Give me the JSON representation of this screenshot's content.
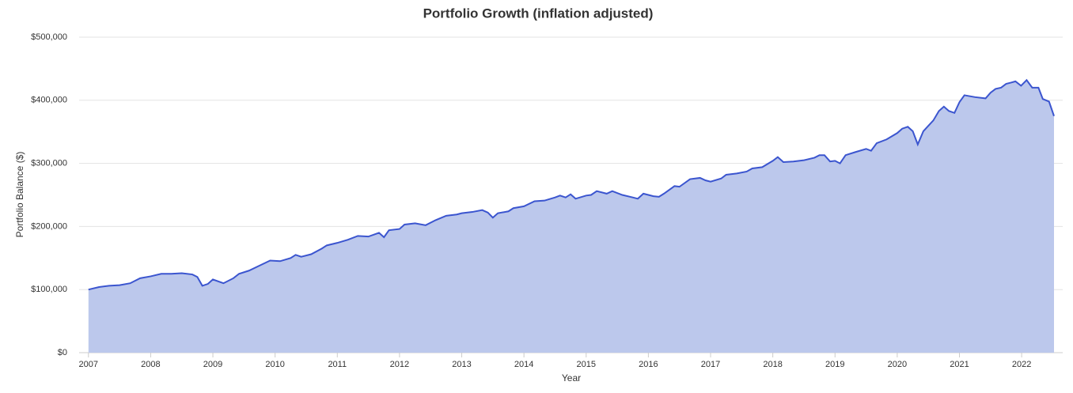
{
  "chart_data": {
    "type": "area",
    "title": "Portfolio Growth (inflation adjusted)",
    "x_label": "Year",
    "y_label": "Portfolio Balance ($)",
    "xlim": [
      2006.85,
      2022.66
    ],
    "xticks": [
      2007,
      2008,
      2009,
      2010,
      2011,
      2012,
      2013,
      2014,
      2015,
      2016,
      2017,
      2018,
      2019,
      2020,
      2021,
      2022
    ],
    "ylim": [
      0,
      500000
    ],
    "yticks": [
      {
        "value": 0,
        "label": "$0"
      },
      {
        "value": 100000,
        "label": "$100,000"
      },
      {
        "value": 200000,
        "label": "$200,000"
      },
      {
        "value": 300000,
        "label": "$300,000"
      },
      {
        "value": 400000,
        "label": "$400,000"
      },
      {
        "value": 500000,
        "label": "$500,000"
      }
    ],
    "grid": true,
    "color": "#3b55cf",
    "fill_color": "#bcc8ec",
    "x": [
      2007.0,
      2007.17,
      2007.33,
      2007.5,
      2007.67,
      2007.83,
      2008.0,
      2008.17,
      2008.33,
      2008.5,
      2008.67,
      2008.75,
      2008.83,
      2008.92,
      2009.0,
      2009.17,
      2009.33,
      2009.42,
      2009.58,
      2009.75,
      2009.92,
      2010.08,
      2010.25,
      2010.33,
      2010.42,
      2010.58,
      2010.75,
      2010.83,
      2011.0,
      2011.17,
      2011.33,
      2011.5,
      2011.67,
      2011.75,
      2011.83,
      2012.0,
      2012.08,
      2012.25,
      2012.42,
      2012.58,
      2012.75,
      2012.92,
      2013.0,
      2013.17,
      2013.33,
      2013.42,
      2013.5,
      2013.58,
      2013.75,
      2013.83,
      2014.0,
      2014.17,
      2014.33,
      2014.5,
      2014.58,
      2014.67,
      2014.75,
      2014.83,
      2015.0,
      2015.08,
      2015.17,
      2015.33,
      2015.42,
      2015.58,
      2015.75,
      2015.83,
      2015.92,
      2016.08,
      2016.17,
      2016.25,
      2016.42,
      2016.5,
      2016.67,
      2016.83,
      2016.92,
      2017.0,
      2017.17,
      2017.25,
      2017.42,
      2017.58,
      2017.67,
      2017.83,
      2018.0,
      2018.08,
      2018.17,
      2018.33,
      2018.5,
      2018.67,
      2018.75,
      2018.83,
      2018.92,
      2019.0,
      2019.08,
      2019.17,
      2019.33,
      2019.5,
      2019.58,
      2019.67,
      2019.83,
      2020.0,
      2020.08,
      2020.17,
      2020.25,
      2020.33,
      2020.42,
      2020.58,
      2020.67,
      2020.75,
      2020.83,
      2020.92,
      2021.0,
      2021.08,
      2021.25,
      2021.42,
      2021.5,
      2021.58,
      2021.67,
      2021.75,
      2021.83,
      2021.9,
      2021.99,
      2022.08,
      2022.17,
      2022.27,
      2022.34,
      2022.44,
      2022.52
    ],
    "values": [
      100000,
      104000,
      106000,
      107000,
      110000,
      118000,
      121000,
      125000,
      125000,
      126000,
      124000,
      120000,
      106000,
      109000,
      116000,
      110000,
      118000,
      125000,
      130000,
      138000,
      146000,
      145000,
      150000,
      155000,
      152000,
      156000,
      165000,
      170000,
      174000,
      179000,
      185000,
      184000,
      190000,
      183000,
      194000,
      196000,
      203000,
      205000,
      202000,
      210000,
      217000,
      219000,
      221000,
      223000,
      226000,
      222000,
      214000,
      221000,
      224000,
      229000,
      232000,
      240000,
      241000,
      246000,
      249000,
      246000,
      251000,
      244000,
      249000,
      250000,
      256000,
      252000,
      256000,
      250000,
      246000,
      244000,
      252000,
      248000,
      247000,
      252000,
      264000,
      263000,
      275000,
      277000,
      273000,
      271000,
      276000,
      282000,
      284000,
      287000,
      292000,
      294000,
      304000,
      310000,
      302000,
      303000,
      305000,
      309000,
      313000,
      313000,
      303000,
      304000,
      300000,
      313000,
      318000,
      323000,
      320000,
      332000,
      338000,
      348000,
      355000,
      358000,
      351000,
      330000,
      351000,
      368000,
      383000,
      390000,
      383000,
      380000,
      397000,
      408000,
      405000,
      403000,
      412000,
      418000,
      420000,
      426000,
      428000,
      430000,
      423000,
      432000,
      420000,
      420000,
      402000,
      398000,
      375000
    ]
  }
}
